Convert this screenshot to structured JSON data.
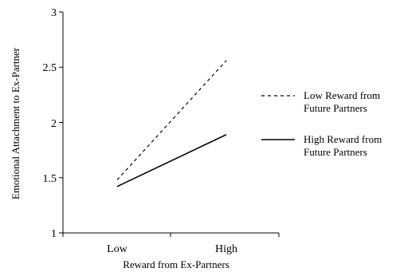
{
  "chart_data": {
    "type": "line",
    "categories": [
      "Low",
      "High"
    ],
    "xlabel": "Reward from Ex-Partners",
    "ylabel": "Emotional Attachment to Ex-Partner",
    "ylim": [
      1,
      3
    ],
    "yticks": [
      "1",
      "1.5",
      "2",
      "2.5",
      "3"
    ],
    "grid": false,
    "legend_position": "right",
    "series": [
      {
        "name_line1": "Low Reward from",
        "name_line2": "Future Partners",
        "values": [
          1.48,
          2.56
        ],
        "style": "dashed",
        "color": "#000000"
      },
      {
        "name_line1": "High Reward from",
        "name_line2": "Future Partners",
        "values": [
          1.42,
          1.89
        ],
        "style": "solid",
        "color": "#000000"
      }
    ]
  }
}
